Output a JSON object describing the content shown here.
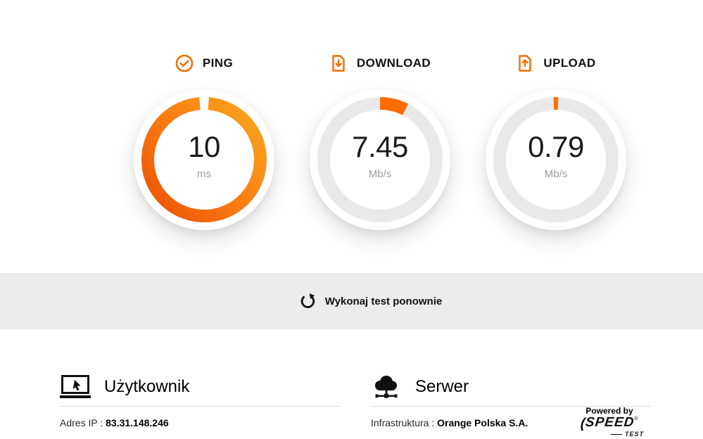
{
  "colors": {
    "accent": "#F16E00",
    "arc": "#FF6D00",
    "track": "#E9E9E9",
    "band_bg": "#ECECEC",
    "ring_gradient": [
      "#EC5005",
      "#FA7D12",
      "#F9A81F"
    ]
  },
  "chart_data": {
    "type": "gauges",
    "gauges": [
      {
        "id": "ping",
        "label": "PING",
        "value": "10",
        "unit": "ms",
        "fraction": 0.975,
        "style": "filled-gradient",
        "icon": "check-circle-icon"
      },
      {
        "id": "download",
        "label": "DOWNLOAD",
        "value": "7.45",
        "unit": "Mb/s",
        "fraction": 0.0745,
        "style": "arc-on-track",
        "icon": "file-download-icon"
      },
      {
        "id": "upload",
        "label": "UPLOAD",
        "value": "0.79",
        "unit": "Mb/s",
        "fraction": 0.012,
        "style": "tick-on-track",
        "icon": "file-upload-icon"
      }
    ]
  },
  "retry": {
    "label": "Wykonaj test ponownie",
    "icon": "refresh-icon"
  },
  "footer": {
    "user": {
      "title": "Użytkownik",
      "icon": "laptop-icon",
      "info_label": "Adres IP :",
      "info_value": "83.31.148.246"
    },
    "server": {
      "title": "Serwer",
      "icon": "cloud-icon",
      "info_label": "Infrastruktura :",
      "info_value": "Orange Polska S.A."
    },
    "speedtest_logo": {
      "powered_by": "Powered by",
      "brand": "SPEED",
      "brand_sub": "TEST",
      "registered": "®",
      "swoosh": "("
    }
  }
}
